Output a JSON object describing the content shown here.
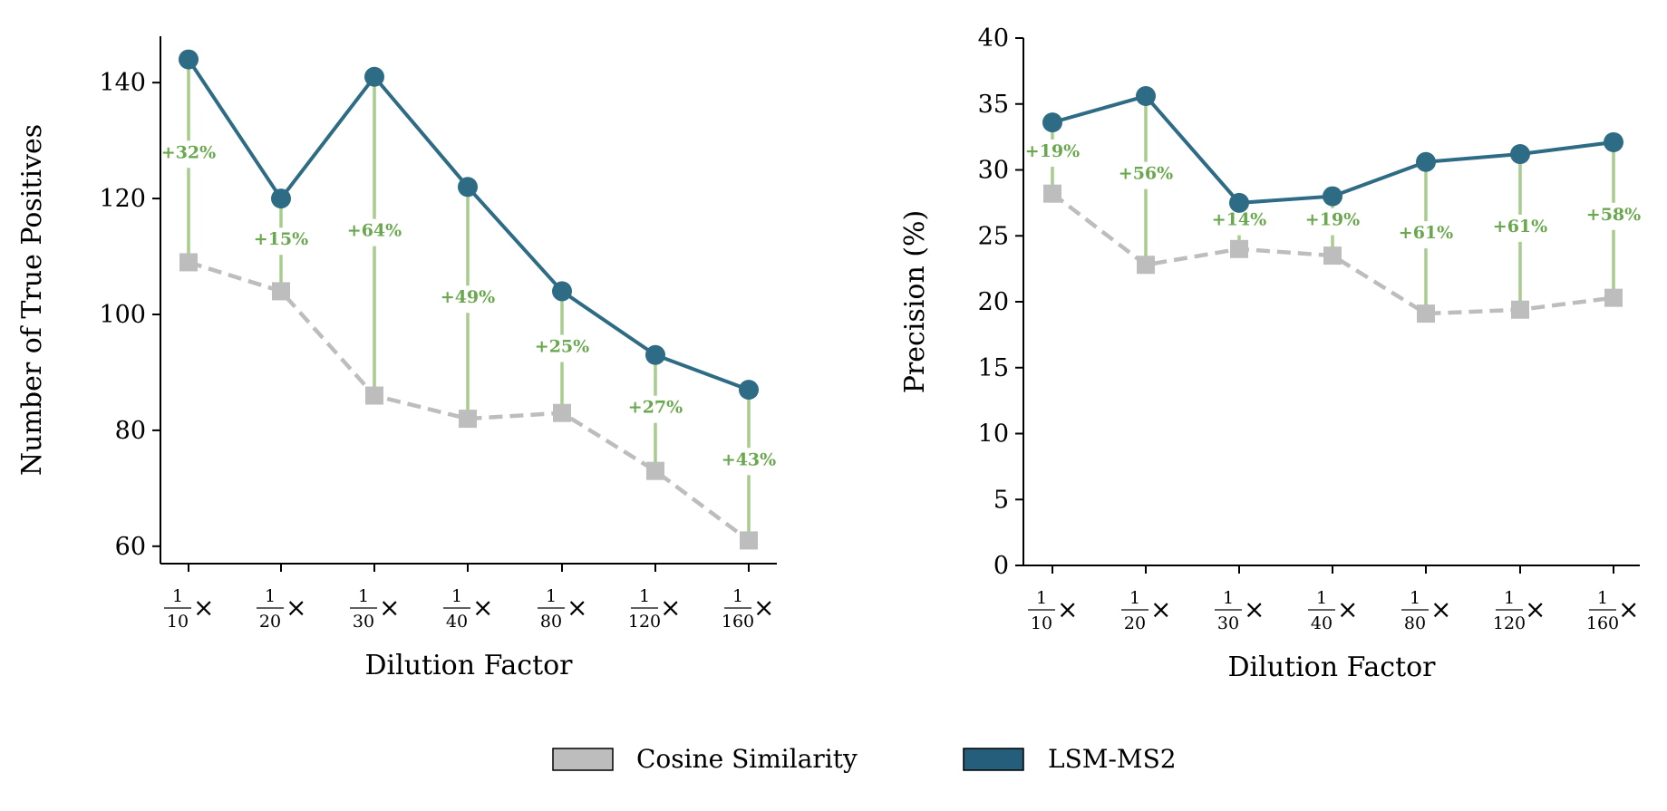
{
  "colors": {
    "lsm": "#2e6b85",
    "cosine": "#bdbdbd",
    "improvement": "#6aa84f",
    "stem": "#a7cc8c",
    "axis": "#000000",
    "legend_lsm_fill": "#245e7a"
  },
  "legend": {
    "cosine_label": "Cosine Similarity",
    "lsm_label": "LSM-MS2"
  },
  "chart_data": [
    {
      "type": "line",
      "xlabel": "Dilution Factor",
      "ylabel": "Number of True Positives",
      "ylim": [
        57,
        148
      ],
      "yticks": [
        60,
        80,
        100,
        120,
        140
      ],
      "categories": [
        {
          "num": "1",
          "den": "10",
          "suffix": "×"
        },
        {
          "num": "1",
          "den": "20",
          "suffix": "×"
        },
        {
          "num": "1",
          "den": "30",
          "suffix": "×"
        },
        {
          "num": "1",
          "den": "40",
          "suffix": "×"
        },
        {
          "num": "1",
          "den": "80",
          "suffix": "×"
        },
        {
          "num": "1",
          "den": "120",
          "suffix": "×"
        },
        {
          "num": "1",
          "den": "160",
          "suffix": "×"
        }
      ],
      "series": [
        {
          "name": "Cosine Similarity",
          "values": [
            109,
            104,
            86,
            82,
            83,
            73,
            61
          ]
        },
        {
          "name": "LSM-MS2",
          "values": [
            144,
            120,
            141,
            122,
            104,
            93,
            87
          ]
        }
      ],
      "improvements": [
        {
          "label": "+32%",
          "at": 127
        },
        {
          "label": "+15%",
          "at": 112
        },
        {
          "label": "+64%",
          "at": 113.5
        },
        {
          "label": "+49%",
          "at": 102
        },
        {
          "label": "+25%",
          "at": 93.5
        },
        {
          "label": "+27%",
          "at": 83
        },
        {
          "label": "+43%",
          "at": 74
        }
      ]
    },
    {
      "type": "line",
      "xlabel": "Dilution Factor",
      "ylabel": "Precision (%)",
      "ylim": [
        0,
        40
      ],
      "yticks": [
        0,
        5,
        10,
        15,
        20,
        25,
        30,
        35,
        40
      ],
      "categories": [
        {
          "num": "1",
          "den": "10",
          "suffix": "×"
        },
        {
          "num": "1",
          "den": "20",
          "suffix": "×"
        },
        {
          "num": "1",
          "den": "30",
          "suffix": "×"
        },
        {
          "num": "1",
          "den": "40",
          "suffix": "×"
        },
        {
          "num": "1",
          "den": "80",
          "suffix": "×"
        },
        {
          "num": "1",
          "den": "120",
          "suffix": "×"
        },
        {
          "num": "1",
          "den": "160",
          "suffix": "×"
        }
      ],
      "series": [
        {
          "name": "Cosine Similarity",
          "values": [
            28.2,
            22.8,
            24.0,
            23.5,
            19.1,
            19.4,
            20.3
          ]
        },
        {
          "name": "LSM-MS2",
          "values": [
            33.6,
            35.6,
            27.5,
            28.0,
            30.6,
            31.2,
            32.1
          ]
        }
      ],
      "improvements": [
        {
          "label": "+19%",
          "at": 31.0
        },
        {
          "label": "+56%",
          "at": 29.3
        },
        {
          "label": "+14%",
          "at": 25.8
        },
        {
          "label": "+19%",
          "at": 25.8
        },
        {
          "label": "+61%",
          "at": 24.8
        },
        {
          "label": "+61%",
          "at": 25.3
        },
        {
          "label": "+58%",
          "at": 26.2
        }
      ]
    }
  ]
}
